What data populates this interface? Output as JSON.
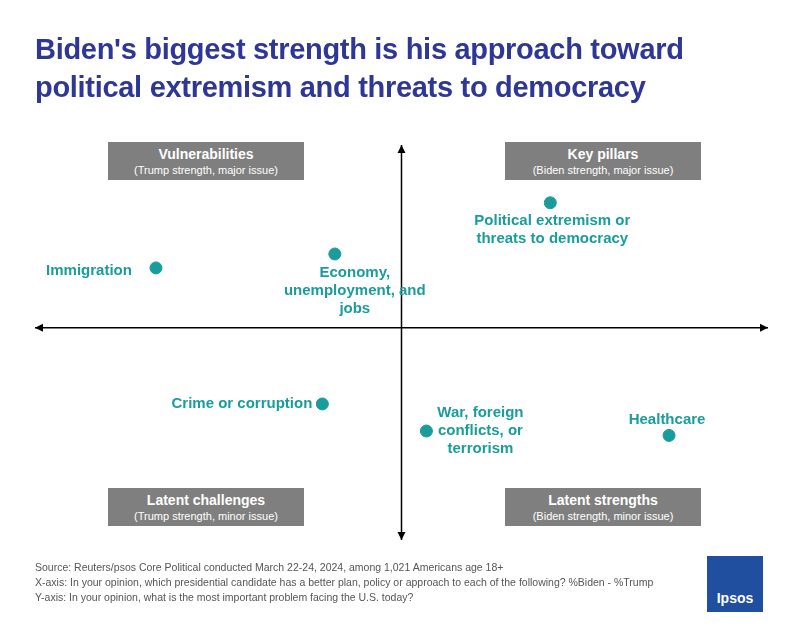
{
  "chart_data": {
    "type": "scatter",
    "title": "Biden's biggest strength is his approach toward political extremism and threats to democracy",
    "labels": [
      "Immigration",
      "Economy, unemployment, and jobs",
      "Political extremism or threats to democracy",
      "Crime or corruption",
      "War, foreign conflicts, or terrorism",
      "Healthcare"
    ],
    "x": [
      -33.5,
      -9.1,
      20.3,
      -10.8,
      3.4,
      36.5
    ],
    "values": [
      8.2,
      10.1,
      17.1,
      -10.4,
      -14.1,
      -14.7
    ],
    "color": "#1a9c9c",
    "xlim": [
      -50,
      50
    ],
    "ylim": [
      -29,
      25
    ],
    "grid": false,
    "tick_labels": false,
    "annotations": [
      {
        "title": "Vulnerabilities",
        "subtitle": "(Trump strength, major issue)"
      },
      {
        "title": "Key pillars",
        "subtitle": "(Biden strength, major issue)"
      },
      {
        "title": "Latent challenges",
        "subtitle": "(Trump strength, minor issue)"
      },
      {
        "title": "Latent strengths",
        "subtitle": "(Biden strength, minor issue)"
      }
    ],
    "notes": [
      "Source: Reuters/psos Core Political conducted March 22-24, 2024, among 1,021 Americans age 18+",
      "X-axis: In your opinion, which presidential candidate has a better plan, policy or approach to each of the following? %Biden - %Trump",
      "Y-axis: In your opinion, what is the most important problem facing the U.S. today?"
    ],
    "logo": "Ipsos"
  }
}
